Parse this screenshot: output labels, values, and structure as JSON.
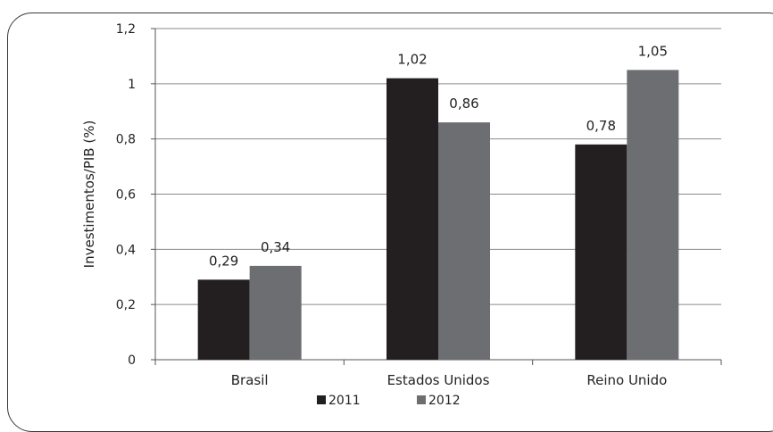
{
  "chart_data": {
    "type": "bar",
    "categories": [
      "Brasil",
      "Estados Unidos",
      "Reino Unido"
    ],
    "series": [
      {
        "name": "2011",
        "values": [
          0.29,
          1.02,
          0.78
        ],
        "labels": [
          "0,29",
          "1,02",
          "0,78"
        ],
        "color": "#231f20"
      },
      {
        "name": "2012",
        "values": [
          0.34,
          0.86,
          1.05
        ],
        "labels": [
          "0,34",
          "0,86",
          "1,05"
        ],
        "color": "#6d6e71"
      }
    ],
    "ylabel": "Investimentos/PIB (%)",
    "ylim": [
      0,
      1.2
    ],
    "yticks": [
      0,
      0.2,
      0.4,
      0.6,
      0.8,
      1,
      1.2
    ],
    "ytick_labels": [
      "0",
      "0,2",
      "0,4",
      "0,6",
      "0,8",
      "1",
      "1,2"
    ],
    "grid": true,
    "legend": "bottom"
  }
}
